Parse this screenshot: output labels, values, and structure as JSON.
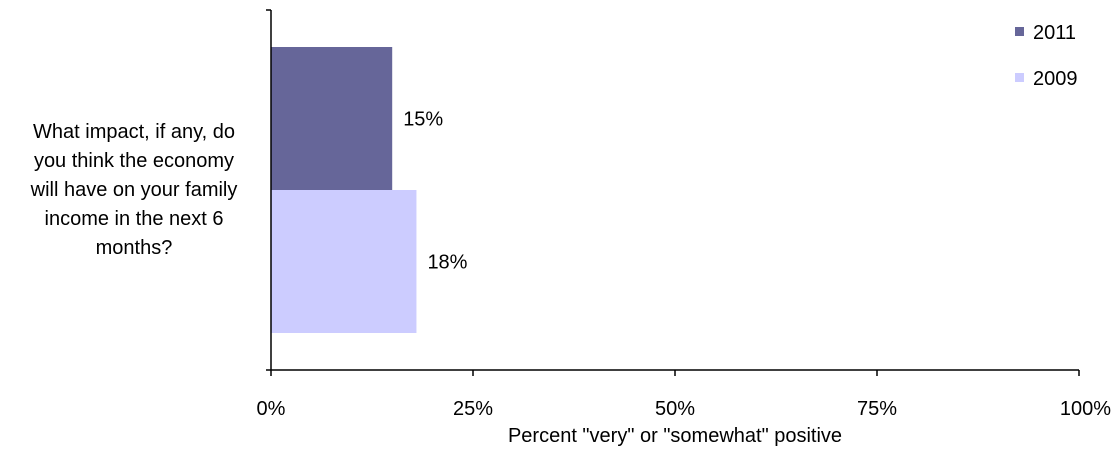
{
  "chart_data": {
    "type": "bar",
    "orientation": "horizontal",
    "categories": [
      "What impact, if any, do you think the economy will have on your family income in the next 6 months?"
    ],
    "category_label_lines": [
      "What impact, if any, do",
      "you think the economy",
      "will have on your family",
      "income in the next 6",
      "months?"
    ],
    "series": [
      {
        "name": "2011",
        "values": [
          15
        ],
        "color": "#666699",
        "label": "15%"
      },
      {
        "name": "2009",
        "values": [
          18
        ],
        "color": "#ccccff",
        "label": "18%"
      }
    ],
    "xlabel": "Percent \"very\" or \"somewhat\" positive",
    "xlim": [
      0,
      100
    ],
    "xticks": [
      0,
      25,
      50,
      75,
      100
    ],
    "xtick_labels": [
      "0%",
      "25%",
      "50%",
      "75%",
      "100%"
    ],
    "legend": {
      "placement": "top-right",
      "entries": [
        "2011",
        "2009"
      ]
    },
    "grid": false
  }
}
